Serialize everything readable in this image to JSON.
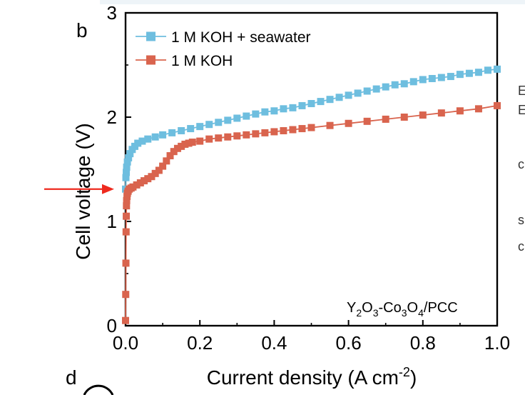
{
  "panel_labels": {
    "current": "b",
    "next": "d"
  },
  "annotation": {
    "label": "Y2O3-Co3O4/PCC",
    "parts": [
      "Y",
      "2",
      "O",
      "3",
      "-Co",
      "3",
      "O",
      "4",
      "/PCC"
    ]
  },
  "colors": {
    "seawater": "#6ebedf",
    "koh": "#d9644e",
    "arrow": "#ee2a1e"
  },
  "chart_data": {
    "type": "line",
    "xlabel": "Current density (A cm-2)",
    "xlabel_parts": {
      "main": "Current density (A cm",
      "sup": "-2",
      "close": ")"
    },
    "ylabel": "Cell voltage (V)",
    "xlim": [
      0,
      1.0
    ],
    "ylim": [
      0,
      3
    ],
    "x_ticks": [
      "0.0",
      "0.2",
      "0.4",
      "0.6",
      "0.8",
      "1.0"
    ],
    "x_tick_values": [
      0,
      0.2,
      0.4,
      0.6,
      0.8,
      1.0
    ],
    "y_ticks": [
      "0",
      "1",
      "2",
      "3"
    ],
    "y_tick_values": [
      0,
      1,
      2,
      3
    ],
    "legend_position": "top-left",
    "arrow_annotation": {
      "points_to_voltage": 1.31
    },
    "series": [
      {
        "name": "1 M KOH + seawater",
        "color": "#6ebedf",
        "x": [
          0,
          0.001,
          0.002,
          0.003,
          0.005,
          0.008,
          0.012,
          0.018,
          0.025,
          0.033,
          0.045,
          0.06,
          0.08,
          0.1,
          0.125,
          0.15,
          0.175,
          0.2,
          0.225,
          0.25,
          0.275,
          0.3,
          0.325,
          0.35,
          0.375,
          0.4,
          0.425,
          0.45,
          0.475,
          0.5,
          0.525,
          0.55,
          0.575,
          0.6,
          0.625,
          0.65,
          0.675,
          0.7,
          0.725,
          0.75,
          0.775,
          0.8,
          0.825,
          0.85,
          0.875,
          0.9,
          0.925,
          0.95,
          0.975,
          1.0
        ],
        "y": [
          1.31,
          1.42,
          1.47,
          1.52,
          1.57,
          1.61,
          1.65,
          1.69,
          1.72,
          1.75,
          1.77,
          1.79,
          1.81,
          1.83,
          1.85,
          1.87,
          1.89,
          1.91,
          1.93,
          1.95,
          1.97,
          1.99,
          2.01,
          2.03,
          2.05,
          2.06,
          2.08,
          2.09,
          2.11,
          2.13,
          2.15,
          2.17,
          2.19,
          2.21,
          2.23,
          2.25,
          2.27,
          2.29,
          2.31,
          2.32,
          2.34,
          2.36,
          2.37,
          2.38,
          2.39,
          2.41,
          2.42,
          2.43,
          2.45,
          2.46
        ]
      },
      {
        "name": "1 M KOH",
        "color": "#d9644e",
        "x": [
          0,
          0.0005,
          0.001,
          0.0015,
          0.002,
          0.0025,
          0.003,
          0.004,
          0.005,
          0.007,
          0.01,
          0.015,
          0.02,
          0.03,
          0.04,
          0.05,
          0.06,
          0.07,
          0.08,
          0.09,
          0.1,
          0.11,
          0.12,
          0.13,
          0.14,
          0.15,
          0.16,
          0.17,
          0.18,
          0.2,
          0.225,
          0.25,
          0.275,
          0.3,
          0.325,
          0.35,
          0.375,
          0.4,
          0.425,
          0.45,
          0.475,
          0.5,
          0.55,
          0.6,
          0.65,
          0.7,
          0.75,
          0.8,
          0.85,
          0.9,
          0.95,
          1.0
        ],
        "y": [
          0.05,
          0.3,
          0.6,
          0.9,
          1.05,
          1.15,
          1.2,
          1.24,
          1.27,
          1.29,
          1.31,
          1.32,
          1.33,
          1.35,
          1.37,
          1.39,
          1.41,
          1.43,
          1.46,
          1.49,
          1.53,
          1.58,
          1.63,
          1.67,
          1.7,
          1.72,
          1.74,
          1.75,
          1.76,
          1.77,
          1.79,
          1.8,
          1.81,
          1.82,
          1.83,
          1.84,
          1.85,
          1.86,
          1.87,
          1.88,
          1.89,
          1.9,
          1.92,
          1.94,
          1.96,
          1.98,
          2.0,
          2.02,
          2.04,
          2.06,
          2.08,
          2.11
        ]
      }
    ]
  }
}
